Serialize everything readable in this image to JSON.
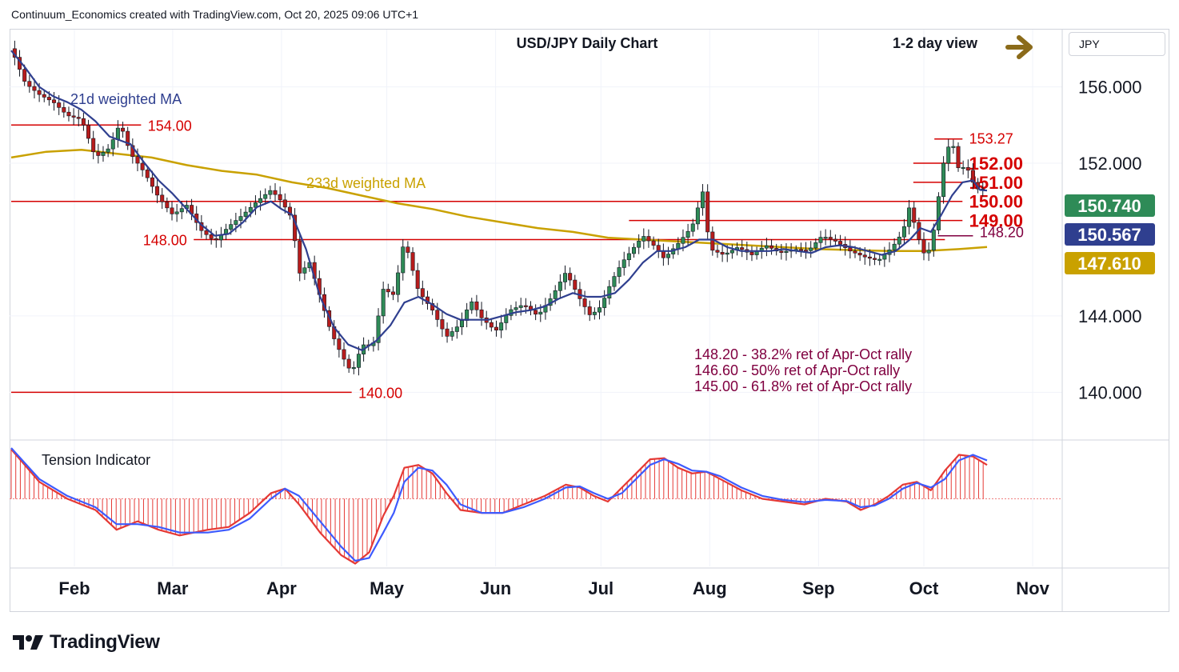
{
  "header": {
    "attribution": "Continuum_Economics created with TradingView.com, Oct 20, 2025 09:06 UTC+1"
  },
  "toolbar": {
    "symbol": "JPY"
  },
  "footer": {
    "brand": "TradingView"
  },
  "chart_data": {
    "type": "candlestick",
    "title": "USD/JPY Daily Chart",
    "subtitle": "1-2 day view",
    "view_arrow": "right",
    "ylim": [
      137.5,
      159.0
    ],
    "price_ticks": [
      "156.000",
      "152.000",
      "144.000",
      "140.000"
    ],
    "price_tick_values": [
      156,
      152,
      144,
      140
    ],
    "x_ticks": [
      {
        "label": "Feb",
        "day": 18
      },
      {
        "label": "Mar",
        "day": 46
      },
      {
        "label": "Apr",
        "day": 77
      },
      {
        "label": "May",
        "day": 107
      },
      {
        "label": "Jun",
        "day": 138
      },
      {
        "label": "Jul",
        "day": 168
      },
      {
        "label": "Aug",
        "day": 199
      },
      {
        "label": "Sep",
        "day": 230
      },
      {
        "label": "Oct",
        "day": 260
      },
      {
        "label": "Nov",
        "day": 291
      }
    ],
    "ma_labels": {
      "ma21": "21d weighted MA",
      "ma233": "233d weighted MA"
    },
    "series_colors": {
      "ma21": "#2f3f8f",
      "ma233": "#c9a100",
      "up": "#2e8b57",
      "down": "#b71c1c"
    },
    "levels": [
      {
        "label": "154.00",
        "value": 154.0,
        "color": "#d50000",
        "from": 0,
        "to": 37
      },
      {
        "label": "148.00",
        "value": 148.0,
        "color": "#d50000",
        "from": 52,
        "to": 266
      },
      {
        "label": "140.00",
        "value": 140.0,
        "color": "#d50000",
        "from": 0,
        "to": 97
      },
      {
        "label": "150.00",
        "value": 150.0,
        "color": "#d50000",
        "from": 0,
        "to": 271
      },
      {
        "label": "149.00",
        "value": 149.0,
        "color": "#d50000",
        "from": 176,
        "to": 271
      },
      {
        "label": "152.00",
        "value": 152.0,
        "color": "#d50000",
        "from": 257,
        "to": 271
      },
      {
        "label": "151.00",
        "value": 151.0,
        "color": "#d50000",
        "from": 257,
        "to": 271
      },
      {
        "label": "153.27",
        "value": 153.27,
        "color": "#d50000",
        "from": 263,
        "to": 271
      },
      {
        "label": "148.20",
        "value": 148.2,
        "color": "#800040",
        "from": 264,
        "to": 274
      }
    ],
    "price_badges": [
      {
        "label": "150.740",
        "value": 150.74,
        "bg": "#2e8b57",
        "fg": "#ffffff"
      },
      {
        "label": "150.567",
        "value": 150.567,
        "bg": "#2f3f8f",
        "fg": "#ffffff"
      },
      {
        "label": "147.610",
        "value": 147.61,
        "bg": "#c9a100",
        "fg": "#ffffff"
      }
    ],
    "annotations": [
      "148.20 - 38.2% ret of Apr-Oct rally",
      "146.60 - 50% ret of Apr-Oct rally",
      "145.00 - 61.8% ret of Apr-Oct rally"
    ],
    "close_path": [
      [
        0,
        158.0
      ],
      [
        4,
        156.2
      ],
      [
        8,
        155.6
      ],
      [
        12,
        155.2
      ],
      [
        16,
        154.5
      ],
      [
        20,
        154.3
      ],
      [
        24,
        152.3
      ],
      [
        28,
        152.8
      ],
      [
        31,
        154.1
      ],
      [
        34,
        152.5
      ],
      [
        38,
        151.5
      ],
      [
        42,
        150.2
      ],
      [
        46,
        149.3
      ],
      [
        50,
        149.8
      ],
      [
        54,
        148.5
      ],
      [
        58,
        147.9
      ],
      [
        62,
        148.7
      ],
      [
        66,
        149.3
      ],
      [
        70,
        150.0
      ],
      [
        74,
        150.6
      ],
      [
        77,
        150.0
      ],
      [
        80,
        149.1
      ],
      [
        82,
        146.2
      ],
      [
        85,
        146.8
      ],
      [
        88,
        145.0
      ],
      [
        91,
        143.2
      ],
      [
        94,
        142.0
      ],
      [
        97,
        141.0
      ],
      [
        100,
        142.5
      ],
      [
        103,
        142.4
      ],
      [
        106,
        145.4
      ],
      [
        109,
        145.1
      ],
      [
        112,
        148.0
      ],
      [
        116,
        145.3
      ],
      [
        120,
        144.3
      ],
      [
        124,
        142.9
      ],
      [
        128,
        143.6
      ],
      [
        131,
        144.8
      ],
      [
        134,
        143.9
      ],
      [
        138,
        143.2
      ],
      [
        142,
        144.3
      ],
      [
        146,
        144.6
      ],
      [
        150,
        144.0
      ],
      [
        154,
        145.0
      ],
      [
        158,
        146.3
      ],
      [
        162,
        144.9
      ],
      [
        165,
        144.0
      ],
      [
        168,
        144.5
      ],
      [
        171,
        145.8
      ],
      [
        174,
        146.8
      ],
      [
        177,
        147.5
      ],
      [
        180,
        148.2
      ],
      [
        183,
        147.7
      ],
      [
        186,
        147.0
      ],
      [
        190,
        147.8
      ],
      [
        194,
        148.7
      ],
      [
        197,
        150.5
      ],
      [
        199,
        147.5
      ],
      [
        203,
        147.2
      ],
      [
        207,
        147.6
      ],
      [
        211,
        147.2
      ],
      [
        215,
        147.7
      ],
      [
        219,
        147.3
      ],
      [
        223,
        147.5
      ],
      [
        227,
        147.4
      ],
      [
        231,
        148.2
      ],
      [
        235,
        147.9
      ],
      [
        239,
        147.4
      ],
      [
        243,
        147.1
      ],
      [
        247,
        146.9
      ],
      [
        251,
        147.6
      ],
      [
        254,
        148.4
      ],
      [
        256,
        149.8
      ],
      [
        258,
        148.3
      ],
      [
        260,
        147.3
      ],
      [
        262,
        147.5
      ],
      [
        264,
        150.0
      ],
      [
        266,
        152.5
      ],
      [
        268,
        153.2
      ],
      [
        270,
        151.6
      ],
      [
        272,
        151.9
      ],
      [
        274,
        151.0
      ],
      [
        276,
        150.5
      ],
      [
        278,
        150.74
      ]
    ],
    "ma21_path": [
      [
        0,
        157.9
      ],
      [
        4,
        157.0
      ],
      [
        8,
        156.0
      ],
      [
        12,
        155.5
      ],
      [
        16,
        155.2
      ],
      [
        20,
        154.8
      ],
      [
        24,
        154.2
      ],
      [
        28,
        153.4
      ],
      [
        31,
        153.2
      ],
      [
        34,
        153.0
      ],
      [
        38,
        152.0
      ],
      [
        42,
        151.1
      ],
      [
        46,
        150.4
      ],
      [
        50,
        149.6
      ],
      [
        54,
        148.8
      ],
      [
        58,
        148.2
      ],
      [
        62,
        148.3
      ],
      [
        66,
        148.9
      ],
      [
        70,
        149.7
      ],
      [
        74,
        150.0
      ],
      [
        77,
        149.6
      ],
      [
        80,
        149.3
      ],
      [
        84,
        147.5
      ],
      [
        88,
        145.0
      ],
      [
        92,
        143.4
      ],
      [
        96,
        142.5
      ],
      [
        100,
        142.2
      ],
      [
        104,
        142.7
      ],
      [
        108,
        143.5
      ],
      [
        112,
        144.7
      ],
      [
        116,
        145.0
      ],
      [
        120,
        144.6
      ],
      [
        124,
        144.1
      ],
      [
        128,
        143.8
      ],
      [
        132,
        143.8
      ],
      [
        136,
        143.8
      ],
      [
        140,
        144.0
      ],
      [
        144,
        144.2
      ],
      [
        148,
        144.3
      ],
      [
        152,
        144.5
      ],
      [
        156,
        144.9
      ],
      [
        160,
        145.2
      ],
      [
        164,
        145.0
      ],
      [
        168,
        145.0
      ],
      [
        172,
        145.2
      ],
      [
        176,
        145.9
      ],
      [
        180,
        146.8
      ],
      [
        184,
        147.4
      ],
      [
        188,
        147.4
      ],
      [
        192,
        147.6
      ],
      [
        196,
        148.0
      ],
      [
        200,
        148.0
      ],
      [
        204,
        147.6
      ],
      [
        208,
        147.4
      ],
      [
        212,
        147.4
      ],
      [
        216,
        147.4
      ],
      [
        220,
        147.5
      ],
      [
        224,
        147.4
      ],
      [
        228,
        147.3
      ],
      [
        232,
        147.6
      ],
      [
        236,
        147.7
      ],
      [
        240,
        147.6
      ],
      [
        244,
        147.4
      ],
      [
        248,
        147.2
      ],
      [
        252,
        147.4
      ],
      [
        256,
        148.0
      ],
      [
        259,
        148.6
      ],
      [
        262,
        148.4
      ],
      [
        265,
        149.3
      ],
      [
        268,
        150.3
      ],
      [
        271,
        151.0
      ],
      [
        274,
        151.1
      ],
      [
        276,
        150.6
      ],
      [
        278,
        150.567
      ]
    ],
    "ma233_path": [
      [
        0,
        152.3
      ],
      [
        10,
        152.6
      ],
      [
        20,
        152.7
      ],
      [
        30,
        152.5
      ],
      [
        40,
        152.3
      ],
      [
        50,
        151.9
      ],
      [
        60,
        151.6
      ],
      [
        70,
        151.4
      ],
      [
        80,
        151.0
      ],
      [
        90,
        150.7
      ],
      [
        100,
        150.3
      ],
      [
        110,
        149.9
      ],
      [
        120,
        149.6
      ],
      [
        130,
        149.2
      ],
      [
        140,
        148.9
      ],
      [
        150,
        148.6
      ],
      [
        160,
        148.4
      ],
      [
        170,
        148.1
      ],
      [
        180,
        148.0
      ],
      [
        190,
        147.9
      ],
      [
        200,
        147.8
      ],
      [
        210,
        147.7
      ],
      [
        220,
        147.6
      ],
      [
        230,
        147.5
      ],
      [
        240,
        147.45
      ],
      [
        250,
        147.4
      ],
      [
        260,
        147.4
      ],
      [
        270,
        147.5
      ],
      [
        278,
        147.61
      ]
    ],
    "tension_indicator": {
      "title": "Tension Indicator",
      "ylim": [
        -1.2,
        1.0
      ],
      "line_red": [
        [
          0,
          0.88
        ],
        [
          8,
          0.3
        ],
        [
          16,
          0.0
        ],
        [
          24,
          -0.2
        ],
        [
          30,
          -0.55
        ],
        [
          36,
          -0.4
        ],
        [
          42,
          -0.55
        ],
        [
          48,
          -0.65
        ],
        [
          56,
          -0.55
        ],
        [
          62,
          -0.5
        ],
        [
          68,
          -0.25
        ],
        [
          74,
          0.1
        ],
        [
          78,
          0.18
        ],
        [
          82,
          -0.1
        ],
        [
          88,
          -0.6
        ],
        [
          94,
          -1.0
        ],
        [
          98,
          -1.15
        ],
        [
          102,
          -0.95
        ],
        [
          106,
          -0.3
        ],
        [
          109,
          0.05
        ],
        [
          112,
          0.55
        ],
        [
          116,
          0.6
        ],
        [
          120,
          0.45
        ],
        [
          124,
          0.1
        ],
        [
          128,
          -0.2
        ],
        [
          134,
          -0.25
        ],
        [
          140,
          -0.25
        ],
        [
          146,
          -0.1
        ],
        [
          152,
          0.05
        ],
        [
          158,
          0.25
        ],
        [
          162,
          0.2
        ],
        [
          166,
          0.05
        ],
        [
          170,
          -0.05
        ],
        [
          174,
          0.2
        ],
        [
          178,
          0.45
        ],
        [
          182,
          0.7
        ],
        [
          186,
          0.72
        ],
        [
          190,
          0.55
        ],
        [
          194,
          0.45
        ],
        [
          198,
          0.48
        ],
        [
          202,
          0.35
        ],
        [
          208,
          0.15
        ],
        [
          214,
          0.0
        ],
        [
          220,
          -0.05
        ],
        [
          226,
          -0.1
        ],
        [
          232,
          0.0
        ],
        [
          238,
          -0.05
        ],
        [
          242,
          -0.2
        ],
        [
          246,
          -0.1
        ],
        [
          250,
          0.05
        ],
        [
          254,
          0.25
        ],
        [
          258,
          0.3
        ],
        [
          262,
          0.15
        ],
        [
          266,
          0.5
        ],
        [
          270,
          0.78
        ],
        [
          274,
          0.75
        ],
        [
          278,
          0.6
        ]
      ],
      "line_blue": [
        [
          0,
          0.9
        ],
        [
          8,
          0.35
        ],
        [
          16,
          0.05
        ],
        [
          24,
          -0.15
        ],
        [
          30,
          -0.45
        ],
        [
          36,
          -0.45
        ],
        [
          42,
          -0.5
        ],
        [
          48,
          -0.6
        ],
        [
          56,
          -0.6
        ],
        [
          62,
          -0.55
        ],
        [
          68,
          -0.35
        ],
        [
          74,
          0.0
        ],
        [
          78,
          0.18
        ],
        [
          82,
          0.05
        ],
        [
          88,
          -0.4
        ],
        [
          94,
          -0.85
        ],
        [
          98,
          -1.1
        ],
        [
          102,
          -1.05
        ],
        [
          106,
          -0.6
        ],
        [
          109,
          -0.25
        ],
        [
          112,
          0.3
        ],
        [
          116,
          0.55
        ],
        [
          120,
          0.5
        ],
        [
          124,
          0.25
        ],
        [
          128,
          -0.1
        ],
        [
          134,
          -0.25
        ],
        [
          140,
          -0.25
        ],
        [
          146,
          -0.15
        ],
        [
          152,
          0.0
        ],
        [
          158,
          0.2
        ],
        [
          162,
          0.22
        ],
        [
          166,
          0.1
        ],
        [
          170,
          0.0
        ],
        [
          174,
          0.1
        ],
        [
          178,
          0.35
        ],
        [
          182,
          0.6
        ],
        [
          186,
          0.7
        ],
        [
          190,
          0.62
        ],
        [
          194,
          0.5
        ],
        [
          198,
          0.48
        ],
        [
          202,
          0.4
        ],
        [
          208,
          0.2
        ],
        [
          214,
          0.05
        ],
        [
          220,
          -0.02
        ],
        [
          226,
          -0.06
        ],
        [
          232,
          -0.02
        ],
        [
          238,
          -0.04
        ],
        [
          242,
          -0.15
        ],
        [
          246,
          -0.12
        ],
        [
          250,
          0.0
        ],
        [
          254,
          0.18
        ],
        [
          258,
          0.28
        ],
        [
          262,
          0.2
        ],
        [
          266,
          0.35
        ],
        [
          270,
          0.68
        ],
        [
          274,
          0.78
        ],
        [
          278,
          0.68
        ]
      ]
    }
  }
}
